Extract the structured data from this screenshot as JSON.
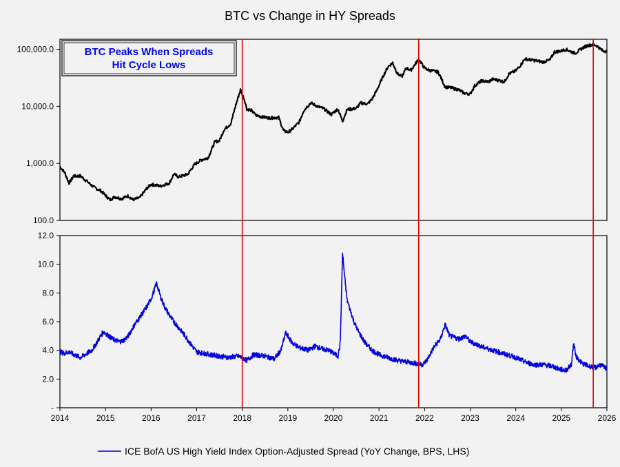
{
  "chart_data": {
    "type": "line",
    "title": "BTC vs Change in HY Spreads",
    "annotation": "BTC Peaks When Spreads Hit Cycle Lows",
    "x_axis": {
      "range": [
        2014.0,
        2026.0
      ],
      "tick_labels": [
        "2014",
        "2015",
        "2016",
        "2017",
        "2018",
        "2019",
        "2020",
        "2021",
        "2022",
        "2023",
        "2024",
        "2025",
        "2026"
      ]
    },
    "top_panel": {
      "scale": "log",
      "ylim": [
        100,
        150000
      ],
      "tick_values": [
        100,
        1000,
        10000,
        100000
      ],
      "tick_labels": [
        "100.0",
        "1,000.0",
        "10,000.0",
        "100,000.0"
      ],
      "series": {
        "name": "BTC",
        "color": "#000000",
        "x": [
          2014.0,
          2014.1,
          2014.2,
          2014.3,
          2014.45,
          2014.6,
          2014.75,
          2014.9,
          2015.05,
          2015.1,
          2015.2,
          2015.35,
          2015.5,
          2015.6,
          2015.75,
          2015.9,
          2016.0,
          2016.2,
          2016.4,
          2016.5,
          2016.6,
          2016.8,
          2016.95,
          2017.1,
          2017.25,
          2017.4,
          2017.5,
          2017.6,
          2017.75,
          2017.85,
          2017.96,
          2018.05,
          2018.1,
          2018.2,
          2018.3,
          2018.45,
          2018.6,
          2018.8,
          2018.9,
          2019.0,
          2019.1,
          2019.25,
          2019.35,
          2019.5,
          2019.65,
          2019.8,
          2019.95,
          2020.1,
          2020.2,
          2020.3,
          2020.5,
          2020.6,
          2020.75,
          2020.85,
          2020.95,
          2021.1,
          2021.2,
          2021.3,
          2021.4,
          2021.5,
          2021.6,
          2021.7,
          2021.87,
          2022.0,
          2022.1,
          2022.3,
          2022.45,
          2022.6,
          2022.75,
          2022.87,
          2023.0,
          2023.1,
          2023.25,
          2023.4,
          2023.5,
          2023.6,
          2023.75,
          2023.85,
          2024.0,
          2024.1,
          2024.2,
          2024.5,
          2024.6,
          2024.75,
          2024.85,
          2025.0,
          2025.1,
          2025.3,
          2025.5,
          2025.6,
          2025.7,
          2025.77,
          2025.9,
          2026.0
        ],
        "values": [
          880,
          700,
          450,
          600,
          600,
          480,
          380,
          330,
          250,
          230,
          260,
          240,
          270,
          230,
          250,
          360,
          430,
          400,
          450,
          650,
          580,
          640,
          950,
          1150,
          1250,
          2400,
          2500,
          3900,
          5000,
          10000,
          19500,
          13000,
          9000,
          8500,
          7000,
          6500,
          6300,
          6400,
          3800,
          3500,
          4000,
          5300,
          8500,
          11500,
          10000,
          9000,
          7200,
          9000,
          5500,
          8800,
          9200,
          11500,
          11000,
          13500,
          19000,
          35000,
          50000,
          58000,
          38000,
          33000,
          47000,
          43000,
          67000,
          47000,
          43000,
          40000,
          22000,
          21000,
          19500,
          17000,
          16500,
          23000,
          28000,
          27000,
          30000,
          29000,
          27000,
          37000,
          42000,
          52000,
          68000,
          62000,
          60000,
          65000,
          90000,
          94000,
          100000,
          85000,
          110000,
          118000,
          120000,
          117000,
          95000,
          92000
        ]
      }
    },
    "bottom_panel": {
      "scale": "linear",
      "ylim": [
        0,
        12
      ],
      "tick_values": [
        0,
        2,
        4,
        6,
        8,
        10,
        12
      ],
      "tick_labels": [
        "-",
        "2.0",
        "4.0",
        "6.0",
        "8.0",
        "10.0",
        "12.0"
      ],
      "series": {
        "name": "ICE BofA US High Yield Index Option-Adjusted Spread (YoY Change, BPS, LHS)",
        "color": "#0000dd",
        "x": [
          2014.0,
          2014.1,
          2014.2,
          2014.3,
          2014.45,
          2014.55,
          2014.7,
          2014.8,
          2014.95,
          2015.0,
          2015.15,
          2015.3,
          2015.4,
          2015.5,
          2015.6,
          2015.75,
          2015.9,
          2016.0,
          2016.08,
          2016.12,
          2016.2,
          2016.3,
          2016.45,
          2016.6,
          2016.75,
          2016.9,
          2017.0,
          2017.15,
          2017.3,
          2017.5,
          2017.7,
          2017.9,
          2018.0,
          2018.1,
          2018.25,
          2018.5,
          2018.7,
          2018.85,
          2018.95,
          2019.0,
          2019.1,
          2019.25,
          2019.45,
          2019.6,
          2019.75,
          2019.9,
          2020.0,
          2020.1,
          2020.15,
          2020.2,
          2020.25,
          2020.3,
          2020.35,
          2020.45,
          2020.55,
          2020.7,
          2020.85,
          2021.0,
          2021.2,
          2021.4,
          2021.6,
          2021.8,
          2021.95,
          2022.05,
          2022.2,
          2022.35,
          2022.45,
          2022.55,
          2022.75,
          2022.9,
          2023.0,
          2023.15,
          2023.3,
          2023.5,
          2023.7,
          2023.9,
          2024.0,
          2024.2,
          2024.4,
          2024.6,
          2024.8,
          2024.95,
          2025.1,
          2025.22,
          2025.27,
          2025.32,
          2025.45,
          2025.6,
          2025.75,
          2025.85,
          2026.0
        ],
        "values": [
          3.9,
          3.8,
          3.9,
          3.7,
          3.5,
          3.7,
          4.0,
          4.5,
          5.3,
          5.2,
          4.8,
          4.6,
          4.7,
          5.0,
          5.6,
          6.3,
          7.0,
          7.6,
          8.3,
          8.7,
          7.8,
          7.0,
          6.2,
          5.6,
          5.0,
          4.3,
          3.9,
          3.8,
          3.7,
          3.6,
          3.5,
          3.6,
          3.5,
          3.3,
          3.7,
          3.6,
          3.4,
          4.0,
          5.2,
          5.0,
          4.5,
          4.2,
          4.0,
          4.3,
          4.1,
          4.0,
          3.8,
          3.6,
          4.5,
          10.8,
          9.0,
          7.5,
          7.0,
          6.0,
          5.3,
          4.5,
          4.0,
          3.7,
          3.5,
          3.3,
          3.2,
          3.1,
          3.0,
          3.3,
          4.2,
          4.8,
          5.8,
          5.0,
          4.8,
          5.0,
          4.6,
          4.4,
          4.2,
          4.0,
          3.8,
          3.6,
          3.5,
          3.2,
          3.0,
          3.0,
          2.9,
          2.7,
          2.6,
          3.0,
          4.5,
          3.6,
          3.1,
          2.9,
          2.8,
          3.0,
          2.7
        ]
      }
    },
    "markers": {
      "x": [
        2018.0,
        2021.87,
        2025.7
      ],
      "color": "#dd0000"
    },
    "legend": "ICE BofA US High Yield Index Option-Adjusted Spread (YoY Change, BPS, LHS)"
  }
}
